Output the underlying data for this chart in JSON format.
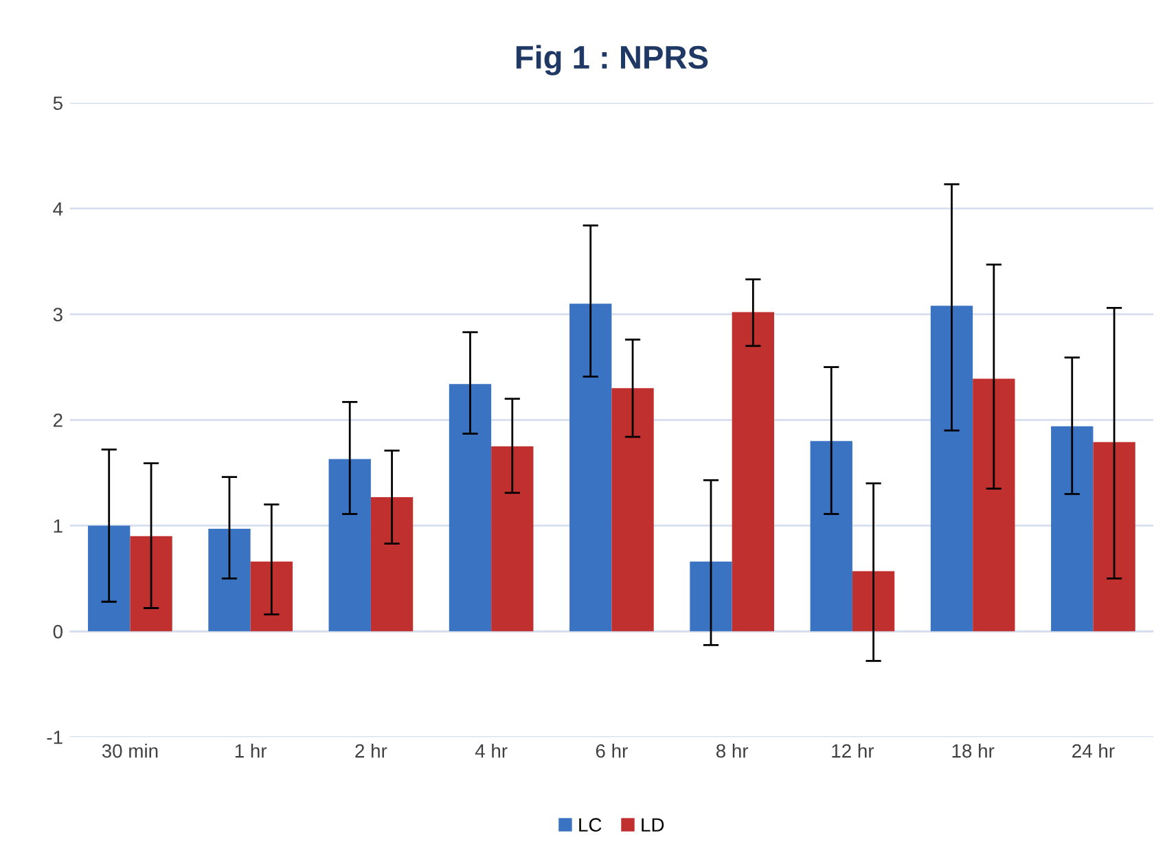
{
  "chart_data": {
    "type": "bar",
    "title": "Fig 1 : NPRS",
    "categories": [
      "30 min",
      "1 hr",
      "2 hr",
      "4 hr",
      "6 hr",
      "8 hr",
      "12 hr",
      "18 hr",
      "24 hr"
    ],
    "series": [
      {
        "name": "LC",
        "color": "#3a73c2",
        "values": [
          1.0,
          0.97,
          1.63,
          2.34,
          3.1,
          0.66,
          1.8,
          3.08,
          1.94
        ],
        "errors": [
          [
            0.28,
            1.72
          ],
          [
            0.5,
            1.46
          ],
          [
            1.11,
            2.17
          ],
          [
            1.87,
            2.83
          ],
          [
            2.41,
            3.84
          ],
          [
            -0.13,
            1.43
          ],
          [
            1.11,
            2.5
          ],
          [
            1.9,
            4.23
          ],
          [
            1.3,
            2.59
          ]
        ]
      },
      {
        "name": "LD",
        "color": "#c0302f",
        "values": [
          0.9,
          0.66,
          1.27,
          1.75,
          2.3,
          3.02,
          0.57,
          2.39,
          1.79
        ],
        "errors": [
          [
            0.22,
            1.59
          ],
          [
            0.16,
            1.2
          ],
          [
            0.83,
            1.71
          ],
          [
            1.31,
            2.2
          ],
          [
            1.84,
            2.76
          ],
          [
            2.7,
            3.33
          ],
          [
            -0.28,
            1.4
          ],
          [
            1.35,
            3.47
          ],
          [
            0.5,
            3.06
          ]
        ]
      }
    ],
    "ylim": [
      -1,
      5
    ],
    "yticks": [
      -1,
      0,
      1,
      2,
      3,
      4,
      5
    ],
    "grid": "y",
    "legend": "bottom"
  }
}
